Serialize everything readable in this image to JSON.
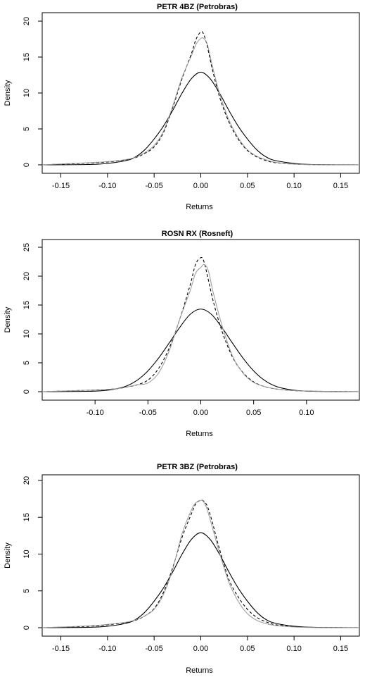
{
  "chart_data": [
    {
      "type": "line",
      "title": "PETR 4BZ (Petrobras)",
      "xlabel": "Returns",
      "ylabel": "Density",
      "xlim": [
        -0.17,
        0.17
      ],
      "ylim": [
        0,
        20
      ],
      "x_ticks": [
        -0.15,
        -0.1,
        -0.05,
        0.0,
        0.05,
        0.1,
        0.15
      ],
      "x_tick_labels": [
        "-0.15",
        "-0.10",
        "-0.05",
        "0.00",
        "0.05",
        "0.10",
        "0.15"
      ],
      "y_ticks": [
        0,
        5,
        10,
        15,
        20
      ],
      "y_tick_labels": [
        "0",
        "5",
        "10",
        "15",
        "20"
      ],
      "grid": false,
      "series": [
        {
          "style": "solid-black",
          "color": "#000000",
          "x": [
            -0.17,
            -0.12,
            -0.1,
            -0.08,
            -0.07,
            -0.06,
            -0.05,
            -0.04,
            -0.03,
            -0.02,
            -0.01,
            0.0,
            0.01,
            0.02,
            0.03,
            0.04,
            0.05,
            0.06,
            0.07,
            0.08,
            0.1,
            0.12,
            0.17
          ],
          "y": [
            0.0,
            0.05,
            0.2,
            0.6,
            1.1,
            2.1,
            3.6,
            5.4,
            7.6,
            10.0,
            12.0,
            12.9,
            12.0,
            10.0,
            7.6,
            5.4,
            3.6,
            2.1,
            1.1,
            0.6,
            0.2,
            0.05,
            0.0
          ]
        },
        {
          "style": "dashed-black",
          "color": "#000000",
          "x": [
            -0.17,
            -0.12,
            -0.1,
            -0.08,
            -0.07,
            -0.06,
            -0.05,
            -0.04,
            -0.03,
            -0.02,
            -0.01,
            -0.005,
            0.0,
            0.003,
            0.007,
            0.012,
            0.02,
            0.03,
            0.04,
            0.05,
            0.06,
            0.07,
            0.08,
            0.1,
            0.12,
            0.17
          ],
          "y": [
            0.0,
            0.25,
            0.4,
            0.7,
            1.0,
            1.6,
            2.5,
            4.5,
            8.0,
            12.0,
            15.5,
            17.5,
            18.5,
            18.2,
            16.5,
            13.5,
            9.5,
            6.0,
            3.6,
            2.0,
            1.1,
            0.6,
            0.3,
            0.1,
            0.03,
            0.0
          ]
        },
        {
          "style": "solid-gray",
          "color": "#999999",
          "x": [
            -0.17,
            -0.12,
            -0.1,
            -0.08,
            -0.07,
            -0.06,
            -0.05,
            -0.04,
            -0.03,
            -0.02,
            -0.01,
            -0.005,
            0.0,
            0.003,
            0.007,
            0.012,
            0.02,
            0.03,
            0.04,
            0.05,
            0.06,
            0.07,
            0.08,
            0.1,
            0.12,
            0.17
          ],
          "y": [
            0.0,
            0.3,
            0.45,
            0.75,
            1.05,
            1.7,
            2.7,
            4.7,
            8.2,
            12.2,
            15.2,
            16.8,
            17.6,
            17.6,
            16.8,
            14.0,
            10.0,
            6.3,
            3.8,
            2.1,
            1.2,
            0.7,
            0.35,
            0.1,
            0.03,
            0.0
          ]
        }
      ]
    },
    {
      "type": "line",
      "title": "ROSN RX (Rosneft)",
      "xlabel": "Returns",
      "ylabel": "Density",
      "xlim": [
        -0.15,
        0.15
      ],
      "ylim": [
        0,
        25
      ],
      "x_ticks": [
        -0.1,
        -0.05,
        0.0,
        0.05,
        0.1
      ],
      "x_tick_labels": [
        "-0.10",
        "-0.05",
        "0.00",
        "0.05",
        "0.10"
      ],
      "y_ticks": [
        0,
        5,
        10,
        15,
        20,
        25
      ],
      "y_tick_labels": [
        "0",
        "5",
        "10",
        "15",
        "20",
        "25"
      ],
      "grid": false,
      "series": [
        {
          "style": "solid-black",
          "color": "#000000",
          "x": [
            -0.15,
            -0.1,
            -0.08,
            -0.07,
            -0.06,
            -0.05,
            -0.04,
            -0.03,
            -0.02,
            -0.01,
            0.0,
            0.01,
            0.02,
            0.03,
            0.04,
            0.05,
            0.06,
            0.07,
            0.08,
            0.1,
            0.15
          ],
          "y": [
            0.0,
            0.1,
            0.5,
            1.0,
            2.0,
            3.6,
            5.8,
            8.4,
            11.1,
            13.4,
            14.3,
            13.4,
            11.1,
            8.4,
            5.8,
            3.6,
            2.0,
            1.0,
            0.5,
            0.1,
            0.0
          ]
        },
        {
          "style": "dashed-black",
          "color": "#000000",
          "x": [
            -0.15,
            -0.1,
            -0.08,
            -0.07,
            -0.06,
            -0.05,
            -0.04,
            -0.03,
            -0.02,
            -0.01,
            -0.005,
            0.0,
            0.003,
            0.007,
            0.012,
            0.02,
            0.03,
            0.04,
            0.05,
            0.06,
            0.07,
            0.08,
            0.1,
            0.15
          ],
          "y": [
            0.0,
            0.3,
            0.5,
            0.8,
            1.2,
            2.0,
            4.0,
            7.5,
            12.5,
            18.5,
            22.0,
            23.2,
            22.5,
            19.5,
            15.5,
            10.5,
            6.0,
            3.3,
            1.7,
            0.9,
            0.5,
            0.3,
            0.1,
            0.0
          ]
        },
        {
          "style": "solid-gray",
          "color": "#999999",
          "x": [
            -0.15,
            -0.1,
            -0.08,
            -0.07,
            -0.06,
            -0.05,
            -0.04,
            -0.03,
            -0.02,
            -0.01,
            -0.005,
            0.0,
            0.003,
            0.007,
            0.012,
            0.02,
            0.03,
            0.04,
            0.05,
            0.06,
            0.07,
            0.08,
            0.1,
            0.15
          ],
          "y": [
            0.0,
            0.3,
            0.5,
            0.8,
            1.2,
            1.5,
            3.2,
            7.0,
            12.5,
            17.5,
            20.5,
            21.5,
            22.0,
            21.0,
            17.0,
            11.5,
            6.2,
            3.2,
            1.6,
            0.9,
            0.5,
            0.3,
            0.1,
            0.0
          ]
        }
      ]
    },
    {
      "type": "line",
      "title": "PETR 3BZ (Petrobras)",
      "xlabel": "Returns",
      "ylabel": "Density",
      "xlim": [
        -0.17,
        0.17
      ],
      "ylim": [
        0,
        20
      ],
      "x_ticks": [
        -0.15,
        -0.1,
        -0.05,
        0.0,
        0.05,
        0.1,
        0.15
      ],
      "x_tick_labels": [
        "-0.15",
        "-0.10",
        "-0.05",
        "0.00",
        "0.05",
        "0.10",
        "0.15"
      ],
      "y_ticks": [
        0,
        5,
        10,
        15,
        20
      ],
      "y_tick_labels": [
        "0",
        "5",
        "10",
        "15",
        "20"
      ],
      "grid": false,
      "series": [
        {
          "style": "solid-black",
          "color": "#000000",
          "x": [
            -0.17,
            -0.12,
            -0.1,
            -0.08,
            -0.07,
            -0.06,
            -0.05,
            -0.04,
            -0.03,
            -0.02,
            -0.01,
            0.0,
            0.01,
            0.02,
            0.03,
            0.04,
            0.05,
            0.06,
            0.07,
            0.08,
            0.1,
            0.12,
            0.17
          ],
          "y": [
            0.0,
            0.05,
            0.2,
            0.6,
            1.1,
            2.1,
            3.6,
            5.4,
            7.6,
            10.0,
            12.0,
            12.9,
            12.0,
            10.0,
            7.6,
            5.4,
            3.6,
            2.1,
            1.1,
            0.6,
            0.2,
            0.05,
            0.0
          ]
        },
        {
          "style": "dashed-black",
          "color": "#000000",
          "x": [
            -0.17,
            -0.12,
            -0.1,
            -0.08,
            -0.07,
            -0.06,
            -0.05,
            -0.04,
            -0.03,
            -0.02,
            -0.01,
            -0.005,
            0.0,
            0.003,
            0.007,
            0.012,
            0.02,
            0.03,
            0.04,
            0.05,
            0.06,
            0.07,
            0.08,
            0.1,
            0.12,
            0.17
          ],
          "y": [
            0.0,
            0.2,
            0.4,
            0.7,
            1.0,
            1.6,
            2.6,
            4.8,
            8.2,
            12.3,
            15.5,
            16.9,
            17.3,
            17.2,
            16.5,
            14.5,
            10.7,
            6.6,
            4.2,
            2.5,
            1.4,
            0.8,
            0.4,
            0.15,
            0.05,
            0.0
          ]
        },
        {
          "style": "solid-gray",
          "color": "#999999",
          "x": [
            -0.17,
            -0.12,
            -0.1,
            -0.08,
            -0.07,
            -0.06,
            -0.05,
            -0.04,
            -0.03,
            -0.02,
            -0.01,
            -0.005,
            0.0,
            0.003,
            0.007,
            0.012,
            0.02,
            0.03,
            0.04,
            0.05,
            0.06,
            0.07,
            0.08,
            0.1,
            0.12,
            0.17
          ],
          "y": [
            0.0,
            0.25,
            0.45,
            0.75,
            1.05,
            1.6,
            2.5,
            4.5,
            8.0,
            12.8,
            16.0,
            17.0,
            17.3,
            17.1,
            16.0,
            13.8,
            10.2,
            6.2,
            3.6,
            1.9,
            1.0,
            0.55,
            0.3,
            0.1,
            0.03,
            0.0
          ]
        }
      ]
    }
  ]
}
